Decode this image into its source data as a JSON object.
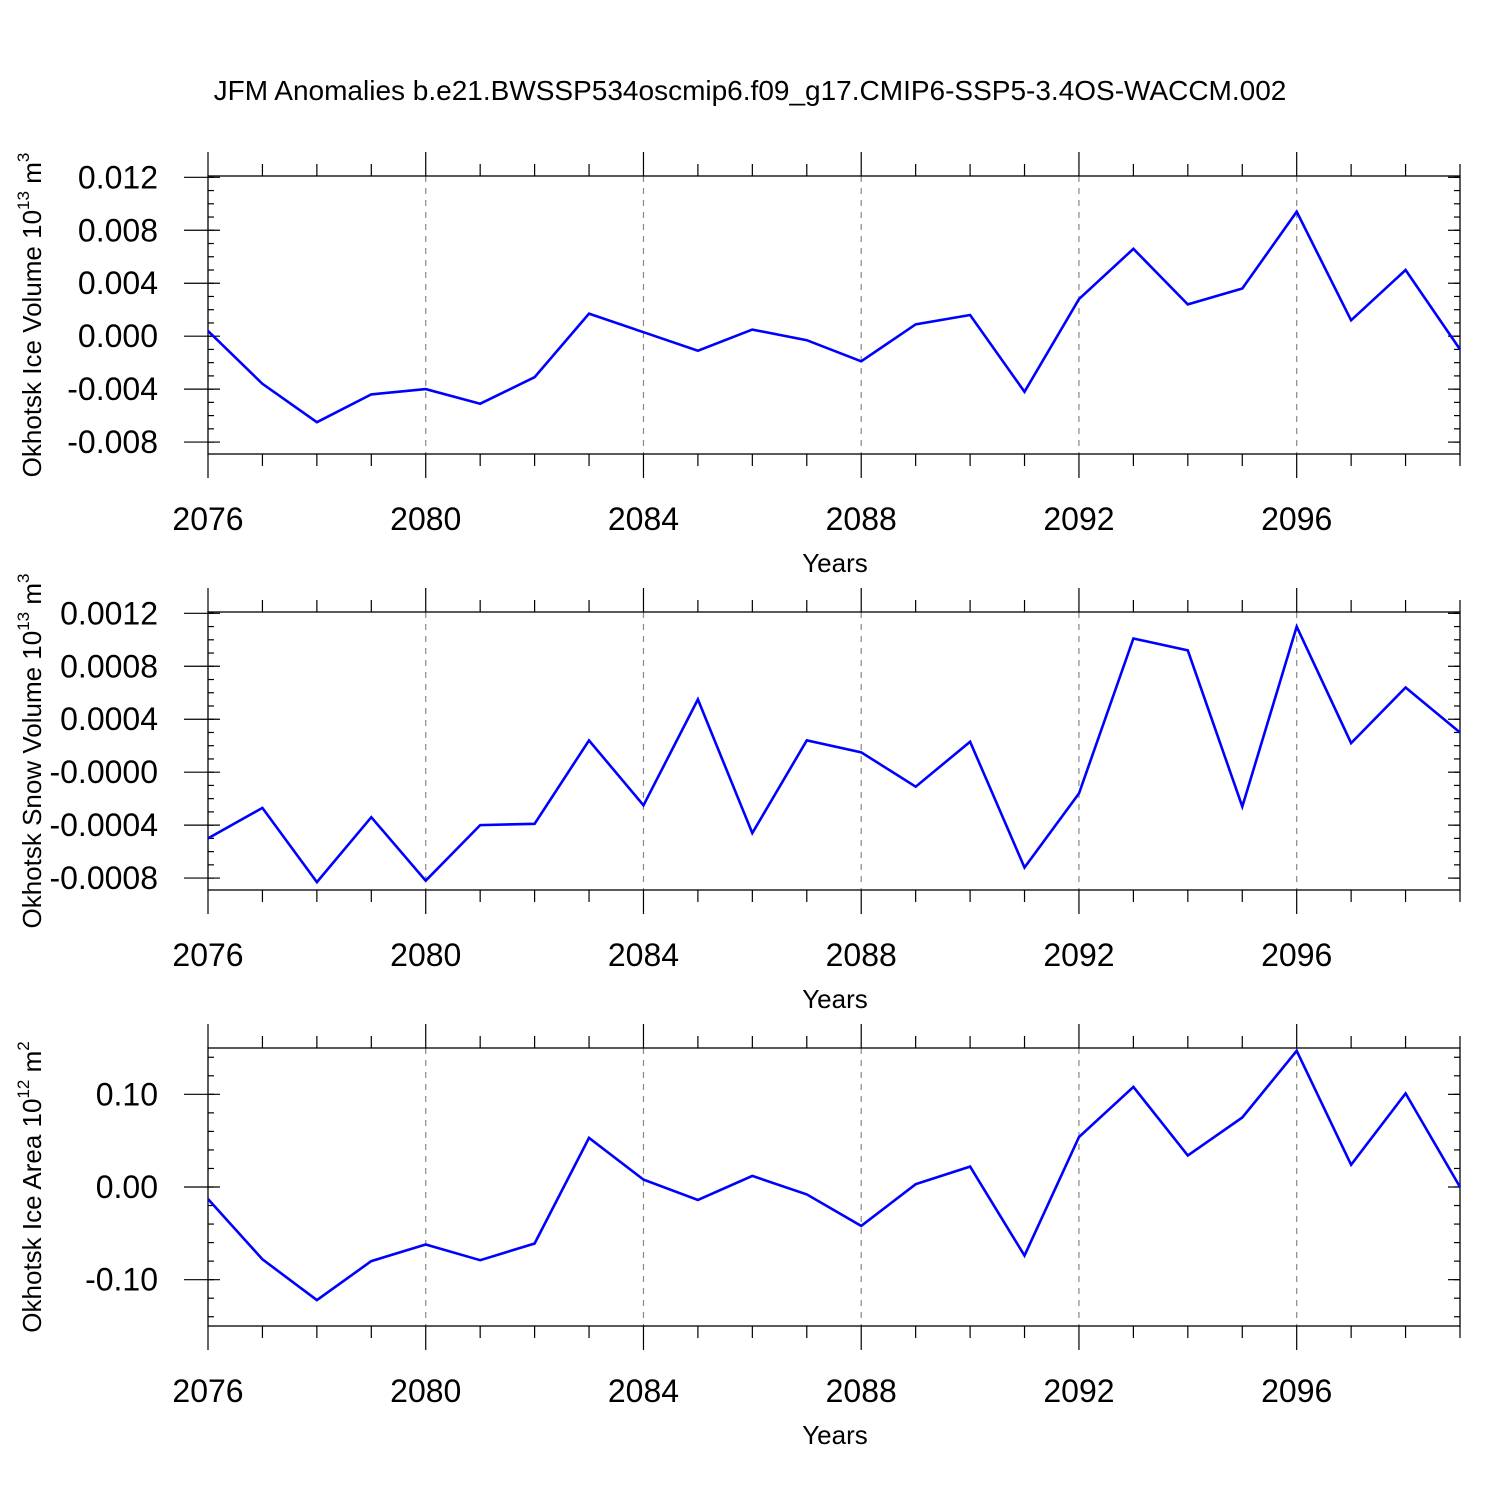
{
  "title": "JFM Anomalies b.e21.BWSSP534oscmip6.f09_g17.CMIP6-SSP5-3.4OS-WACCM.002",
  "chart_data": [
    {
      "type": "line",
      "xlabel": "Years",
      "ylabel": "Okhotsk Ice Volume 10",
      "ylabel_exp": "13",
      "ylabel_unit": "m",
      "ylabel_unit_exp": "3",
      "x": [
        2076,
        2077,
        2078,
        2079,
        2080,
        2081,
        2082,
        2083,
        2084,
        2085,
        2086,
        2087,
        2088,
        2089,
        2090,
        2091,
        2092,
        2093,
        2094,
        2095,
        2096,
        2097,
        2098,
        2099
      ],
      "values": [
        0.0004,
        -0.0036,
        -0.0065,
        -0.0044,
        -0.004,
        -0.0051,
        -0.0031,
        0.0017,
        0.0003,
        -0.0011,
        0.0005,
        -0.0003,
        -0.0019,
        0.0009,
        0.0016,
        -0.0042,
        0.0028,
        0.0066,
        0.0024,
        0.0036,
        0.0094,
        0.0012,
        0.005,
        -0.001
      ],
      "xlim": [
        2076,
        2099
      ],
      "ylim": [
        -0.0089,
        0.0121
      ],
      "xticks": [
        2076,
        2080,
        2084,
        2088,
        2092,
        2096
      ],
      "xtick_labels": [
        "2076",
        "2080",
        "2084",
        "2088",
        "2092",
        "2096"
      ],
      "yticks": [
        -0.008,
        -0.004,
        0.0,
        0.004,
        0.008,
        0.012
      ],
      "ytick_labels": [
        "-0.008",
        "-0.004",
        "0.000",
        "0.004",
        "0.008",
        "0.012"
      ],
      "y_minor_step": 0.001,
      "grid": "dashed vertical at major x ticks",
      "color": "#0000ff"
    },
    {
      "type": "line",
      "xlabel": "Years",
      "ylabel": "Okhotsk Snow Volume 10",
      "ylabel_exp": "13",
      "ylabel_unit": "m",
      "ylabel_unit_exp": "3",
      "x": [
        2076,
        2077,
        2078,
        2079,
        2080,
        2081,
        2082,
        2083,
        2084,
        2085,
        2086,
        2087,
        2088,
        2089,
        2090,
        2091,
        2092,
        2093,
        2094,
        2095,
        2096,
        2097,
        2098,
        2099
      ],
      "values": [
        -0.0005,
        -0.00027,
        -0.00083,
        -0.00034,
        -0.00082,
        -0.0004,
        -0.00039,
        0.00024,
        -0.00025,
        0.00055,
        -0.00046,
        0.00024,
        0.00015,
        -0.00011,
        0.00023,
        -0.00072,
        -0.00016,
        0.00101,
        0.00092,
        -0.00026,
        0.0011,
        0.00022,
        0.00064,
        0.0003
      ],
      "xlim": [
        2076,
        2099
      ],
      "ylim": [
        -0.00089,
        0.00121
      ],
      "xticks": [
        2076,
        2080,
        2084,
        2088,
        2092,
        2096
      ],
      "xtick_labels": [
        "2076",
        "2080",
        "2084",
        "2088",
        "2092",
        "2096"
      ],
      "yticks": [
        -0.0008,
        -0.0004,
        0.0,
        0.0004,
        0.0008,
        0.0012
      ],
      "ytick_labels": [
        "-0.0008",
        "-0.0004",
        "-0.0000",
        "0.0004",
        "0.0008",
        "0.0012"
      ],
      "y_minor_step": 0.0001,
      "grid": "dashed vertical at major x ticks",
      "color": "#0000ff"
    },
    {
      "type": "line",
      "xlabel": "Years",
      "ylabel": "Okhotsk Ice Area 10",
      "ylabel_exp": "12",
      "ylabel_unit": "m",
      "ylabel_unit_exp": "2",
      "x": [
        2076,
        2077,
        2078,
        2079,
        2080,
        2081,
        2082,
        2083,
        2084,
        2085,
        2086,
        2087,
        2088,
        2089,
        2090,
        2091,
        2092,
        2093,
        2094,
        2095,
        2096,
        2097,
        2098,
        2099
      ],
      "values": [
        -0.013,
        -0.078,
        -0.122,
        -0.08,
        -0.062,
        -0.079,
        -0.061,
        0.053,
        0.008,
        -0.014,
        0.012,
        -0.008,
        -0.042,
        0.003,
        0.022,
        -0.074,
        0.054,
        0.108,
        0.034,
        0.075,
        0.147,
        0.024,
        0.101,
        0.0
      ],
      "xlim": [
        2076,
        2099
      ],
      "ylim": [
        -0.15,
        0.15
      ],
      "xticks": [
        2076,
        2080,
        2084,
        2088,
        2092,
        2096
      ],
      "xtick_labels": [
        "2076",
        "2080",
        "2084",
        "2088",
        "2092",
        "2096"
      ],
      "yticks": [
        -0.1,
        0.0,
        0.1
      ],
      "ytick_labels": [
        "-0.10",
        "0.00",
        "0.10"
      ],
      "y_minor_step": 0.02,
      "grid": "dashed vertical at major x ticks",
      "color": "#0000ff"
    }
  ]
}
